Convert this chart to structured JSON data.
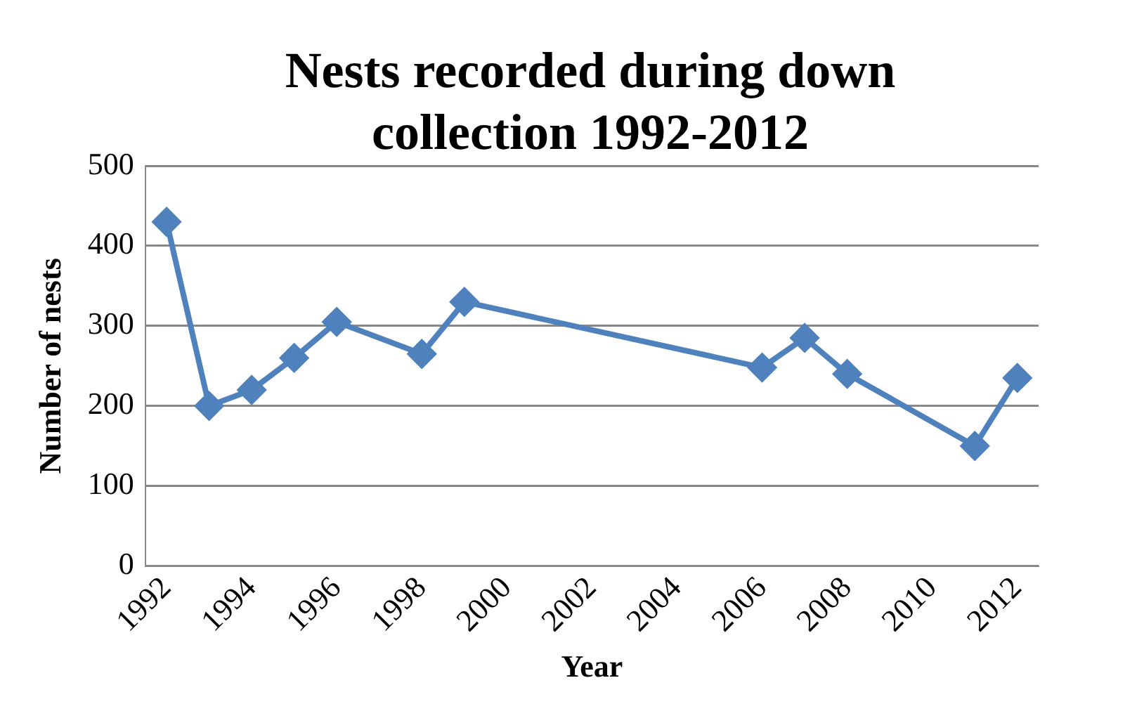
{
  "chart_data": {
    "type": "line",
    "title": "Nests recorded during down collection 1992-2012",
    "xlabel": "Year",
    "ylabel": "Number of nests",
    "x": [
      1992,
      1993,
      1994,
      1995,
      1996,
      1998,
      1999,
      2006,
      2007,
      2008,
      2011,
      2012
    ],
    "series": [
      {
        "color": "#4f81bd",
        "values": [
          430,
          200,
          220,
          260,
          305,
          265,
          330,
          248,
          285,
          240,
          150,
          235
        ]
      }
    ],
    "xlim": [
      1991.5,
      2012.5
    ],
    "xticks": [
      1992,
      1994,
      1996,
      1998,
      2000,
      2002,
      2004,
      2006,
      2008,
      2010,
      2012
    ],
    "ylim": [
      0,
      500
    ],
    "yticks": [
      0,
      100,
      200,
      300,
      400,
      500
    ],
    "grid": "y",
    "legend": false,
    "marker": "diamond",
    "line_style": "solid"
  }
}
